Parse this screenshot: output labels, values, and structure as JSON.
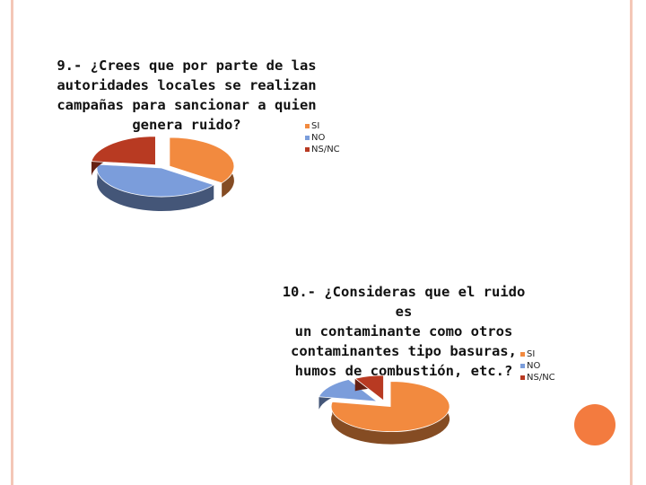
{
  "chart_data": [
    {
      "type": "pie",
      "title": "9.- ¿Crees que por parte de las autoridades locales se realizan campañas para sancionar a quien genera ruido?",
      "title_lines": [
        "9.- ¿Crees que por parte de las",
        "autoridades locales se realizan",
        "campañas para sancionar a quien",
        "genera ruido?"
      ],
      "categories": [
        "SI",
        "NO",
        "NS/NC"
      ],
      "values": [
        35,
        42,
        23
      ],
      "colors": [
        "#f28a3f",
        "#7b9ddb",
        "#b83a22"
      ],
      "legend_position": "right"
    },
    {
      "type": "pie",
      "title": "10.- ¿Consideras que el ruido es un contaminante como otros contaminantes tipo basuras, humos de combustión, etc.?",
      "title_lines": [
        "10.- ¿Consideras que el ruido es",
        "un contaminante como otros",
        "contaminantes tipo basuras,",
        "humos de combustión, etc.?"
      ],
      "categories": [
        "SI",
        "NO",
        "NS/NC"
      ],
      "values": [
        78,
        14,
        8
      ],
      "colors": [
        "#f28a3f",
        "#7b9ddb",
        "#b83a22"
      ],
      "legend_position": "right"
    }
  ]
}
